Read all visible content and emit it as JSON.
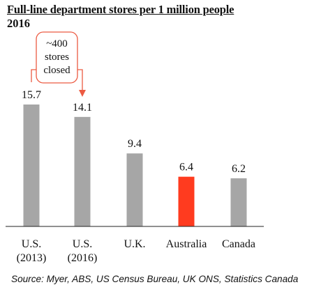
{
  "chart_data": {
    "type": "bar",
    "title": "Full-line department stores per 1 million people",
    "subtitle": "2016",
    "categories": [
      [
        "U.S.",
        "(2013)"
      ],
      [
        "U.S.",
        "(2016)"
      ],
      [
        "U.K."
      ],
      [
        "Australia"
      ],
      [
        "Canada"
      ]
    ],
    "values": [
      15.7,
      14.1,
      9.4,
      6.4,
      6.2
    ],
    "value_labels": [
      "15.7",
      "14.1",
      "9.4",
      "6.4",
      "6.2"
    ],
    "bar_colors": [
      "#a6a6a6",
      "#a6a6a6",
      "#a6a6a6",
      "#ff3b1f",
      "#a6a6a6"
    ],
    "ylim": [
      0,
      20
    ],
    "grid": false,
    "annotation": {
      "lines": [
        "~400",
        "stores",
        "closed"
      ],
      "color": "#ec5a42",
      "from_category": 0,
      "to_category": 1
    },
    "source": "Source: Myer, ABS, US Census Bureau, UK ONS, Statistics Canada"
  }
}
